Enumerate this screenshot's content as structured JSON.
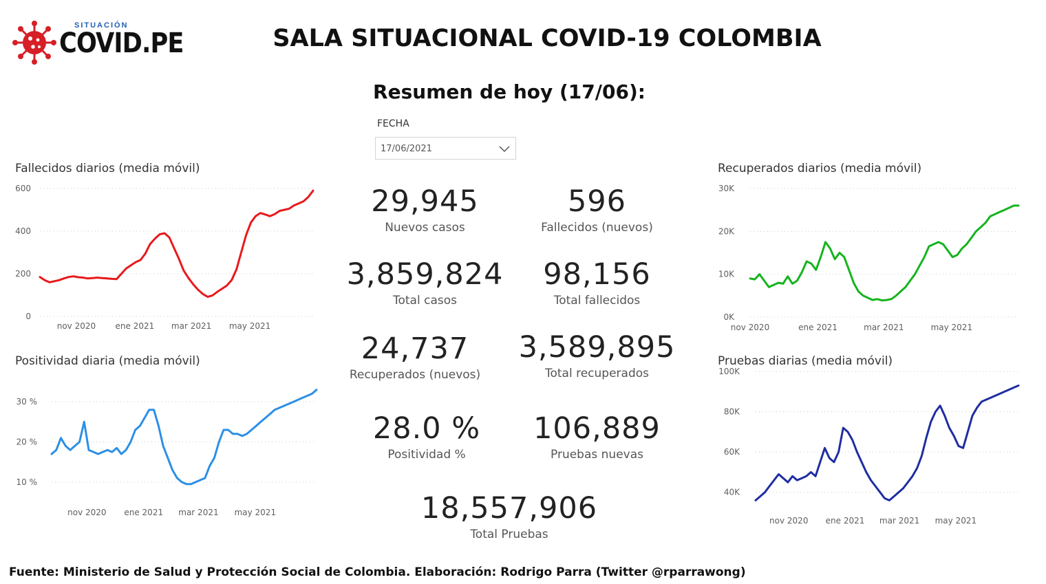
{
  "header": {
    "logo_small": "SITUACIÓN",
    "logo_big": "COVID.PE",
    "title": "SALA SITUACIONAL COVID-19 COLOMBIA",
    "subtitle": "Resumen de hoy (17/06):"
  },
  "filter": {
    "label": "FECHA",
    "value": "17/06/2021"
  },
  "kpis": [
    {
      "value": "29,945",
      "label": "Nuevos casos"
    },
    {
      "value": "596",
      "label": "Fallecidos (nuevos)"
    },
    {
      "value": "3,859,824",
      "label": "Total casos"
    },
    {
      "value": "98,156",
      "label": "Total fallecidos"
    },
    {
      "value": "24,737",
      "label": "Recuperados (nuevos)"
    },
    {
      "value": "3,589,895",
      "label": "Total recuperados"
    },
    {
      "value": "28.0 %",
      "label": "Positividad %"
    },
    {
      "value": "106,889",
      "label": "Pruebas nuevas"
    },
    {
      "value": "18,557,906",
      "label": "Total Pruebas"
    }
  ],
  "footer": "Fuente: Ministerio de Salud y Protección Social de Colombia. Elaboración: Rodrigo Parra (Twitter @rparrawong)",
  "colors": {
    "fallecidos": "#e8191b",
    "positividad": "#2b8fe6",
    "recuperados": "#15b41d",
    "pruebas": "#1e2da0",
    "logo_red": "#d61f26"
  },
  "chart_data": [
    {
      "id": "fallecidos",
      "type": "line",
      "title": "Fallecidos diarios (media móvil)",
      "x_range": [
        0,
        285
      ],
      "ylim": [
        0,
        600
      ],
      "yticks": [
        {
          "v": 0,
          "t": "0"
        },
        {
          "v": 200,
          "t": "200"
        },
        {
          "v": 400,
          "t": "400"
        },
        {
          "v": 600,
          "t": "600"
        }
      ],
      "xticks": [
        {
          "v": 38,
          "t": "nov 2020"
        },
        {
          "v": 99,
          "t": "ene 2021"
        },
        {
          "v": 158,
          "t": "mar 2021"
        },
        {
          "v": 219,
          "t": "may 2021"
        }
      ],
      "grid": true,
      "series": [
        {
          "x": [
            0,
            5,
            10,
            15,
            20,
            25,
            30,
            35,
            40,
            45,
            50,
            55,
            60,
            65,
            70,
            75,
            80,
            85,
            90,
            95,
            100,
            105,
            110,
            115,
            120,
            125,
            130,
            135,
            140,
            145,
            150,
            155,
            160,
            165,
            170,
            175,
            180,
            185,
            190,
            195,
            200,
            205,
            210,
            215,
            220,
            225,
            230,
            235,
            240,
            245,
            250,
            255,
            260,
            265,
            270,
            275,
            280,
            285
          ],
          "y": [
            185,
            170,
            160,
            165,
            170,
            178,
            185,
            188,
            184,
            182,
            178,
            180,
            182,
            180,
            178,
            176,
            175,
            200,
            225,
            240,
            255,
            265,
            295,
            340,
            365,
            385,
            390,
            370,
            320,
            270,
            215,
            180,
            150,
            125,
            105,
            92,
            98,
            115,
            130,
            145,
            170,
            220,
            300,
            380,
            440,
            470,
            485,
            478,
            470,
            480,
            495,
            500,
            505,
            520,
            530,
            540,
            560,
            590
          ]
        }
      ]
    },
    {
      "id": "positividad",
      "type": "line",
      "title": "Positividad diaria (media móvil)",
      "x_range": [
        0,
        285
      ],
      "ylim": [
        5,
        35
      ],
      "yticks": [
        {
          "v": 10,
          "t": "10 %"
        },
        {
          "v": 20,
          "t": "20 %"
        },
        {
          "v": 30,
          "t": "30 %"
        }
      ],
      "xticks": [
        {
          "v": 38,
          "t": "nov 2020"
        },
        {
          "v": 99,
          "t": "ene 2021"
        },
        {
          "v": 158,
          "t": "mar 2021"
        },
        {
          "v": 219,
          "t": "may 2021"
        }
      ],
      "grid": true,
      "series": [
        {
          "x": [
            0,
            5,
            10,
            15,
            20,
            25,
            30,
            35,
            40,
            45,
            50,
            55,
            60,
            65,
            70,
            75,
            80,
            85,
            90,
            95,
            100,
            105,
            110,
            115,
            120,
            125,
            130,
            135,
            140,
            145,
            150,
            155,
            160,
            165,
            170,
            175,
            180,
            185,
            190,
            195,
            200,
            205,
            210,
            215,
            220,
            225,
            230,
            235,
            240,
            245,
            250,
            255,
            260,
            265,
            270,
            275,
            280,
            285
          ],
          "y": [
            17,
            18,
            21,
            19,
            18,
            19,
            20,
            25,
            18,
            17.5,
            17,
            17.5,
            18,
            17.5,
            18.5,
            17,
            18,
            20,
            23,
            24,
            26,
            28,
            28,
            24,
            19,
            16,
            13,
            11,
            10,
            9.5,
            9.5,
            10,
            10.5,
            11,
            14,
            16,
            20,
            23,
            23,
            22,
            22,
            21.5,
            22,
            23,
            24,
            25,
            26,
            27,
            28,
            28.5,
            29,
            29.5,
            30,
            30.5,
            31,
            31.5,
            32,
            33
          ]
        }
      ]
    },
    {
      "id": "recuperados",
      "type": "line",
      "title": "Recuperados diarios (media móvil)",
      "x_range": [
        0,
        285
      ],
      "ylim": [
        0,
        30000
      ],
      "yticks": [
        {
          "v": 0,
          "t": "0K"
        },
        {
          "v": 10000,
          "t": "10K"
        },
        {
          "v": 20000,
          "t": "20K"
        },
        {
          "v": 30000,
          "t": "30K"
        }
      ],
      "xticks": [
        {
          "v": 0,
          "t": "nov 2020"
        },
        {
          "v": 72,
          "t": "ene 2021"
        },
        {
          "v": 142,
          "t": "mar 2021"
        },
        {
          "v": 214,
          "t": "may 2021"
        }
      ],
      "grid": true,
      "series": [
        {
          "x": [
            0,
            5,
            10,
            15,
            20,
            25,
            30,
            35,
            40,
            45,
            50,
            55,
            60,
            65,
            70,
            75,
            80,
            85,
            90,
            95,
            100,
            105,
            110,
            115,
            120,
            125,
            130,
            135,
            140,
            145,
            150,
            155,
            160,
            165,
            170,
            175,
            180,
            185,
            190,
            195,
            200,
            205,
            210,
            215,
            220,
            225,
            230,
            235,
            240,
            245,
            250,
            255,
            260,
            265,
            270,
            275,
            280,
            285
          ],
          "y": [
            9000,
            8800,
            10000,
            8500,
            7000,
            7500,
            8000,
            7800,
            9500,
            7800,
            8500,
            10500,
            13000,
            12500,
            11000,
            14000,
            17500,
            16000,
            13500,
            15000,
            14000,
            11000,
            8000,
            6000,
            5000,
            4500,
            4000,
            4200,
            3900,
            4000,
            4200,
            5000,
            6000,
            7000,
            8500,
            10000,
            12000,
            14000,
            16500,
            17000,
            17500,
            17000,
            15500,
            14000,
            14500,
            16000,
            17000,
            18500,
            20000,
            21000,
            22000,
            23500,
            24000,
            24500,
            25000,
            25500,
            26000,
            26000
          ]
        }
      ]
    },
    {
      "id": "pruebas",
      "type": "line",
      "title": "Pruebas diarias (media móvil)",
      "x_range": [
        0,
        285
      ],
      "ylim": [
        30000,
        100000
      ],
      "yticks": [
        {
          "v": 40000,
          "t": "40K"
        },
        {
          "v": 60000,
          "t": "60K"
        },
        {
          "v": 80000,
          "t": "80K"
        },
        {
          "v": 100000,
          "t": "100K"
        }
      ],
      "xticks": [
        {
          "v": 36,
          "t": "nov 2020"
        },
        {
          "v": 97,
          "t": "ene 2021"
        },
        {
          "v": 156,
          "t": "mar 2021"
        },
        {
          "v": 217,
          "t": "may 2021"
        }
      ],
      "grid": true,
      "series": [
        {
          "x": [
            0,
            5,
            10,
            15,
            20,
            25,
            30,
            35,
            40,
            45,
            50,
            55,
            60,
            65,
            70,
            75,
            80,
            85,
            90,
            95,
            100,
            105,
            110,
            115,
            120,
            125,
            130,
            135,
            140,
            145,
            150,
            155,
            160,
            165,
            170,
            175,
            180,
            185,
            190,
            195,
            200,
            205,
            210,
            215,
            220,
            225,
            230,
            235,
            240,
            245,
            250,
            255,
            260,
            265,
            270,
            275,
            280,
            285
          ],
          "y": [
            36000,
            38000,
            40000,
            43000,
            46000,
            49000,
            47000,
            45000,
            48000,
            46000,
            47000,
            48000,
            50000,
            48000,
            55000,
            62000,
            57000,
            55000,
            60000,
            72000,
            70000,
            66000,
            60000,
            55000,
            50000,
            46000,
            43000,
            40000,
            37000,
            36000,
            38000,
            40000,
            42000,
            45000,
            48000,
            52000,
            58000,
            67000,
            75000,
            80000,
            83000,
            78000,
            72000,
            68000,
            63000,
            62000,
            70000,
            78000,
            82000,
            85000,
            86000,
            87000,
            88000,
            89000,
            90000,
            91000,
            92000,
            93000
          ]
        }
      ]
    }
  ]
}
